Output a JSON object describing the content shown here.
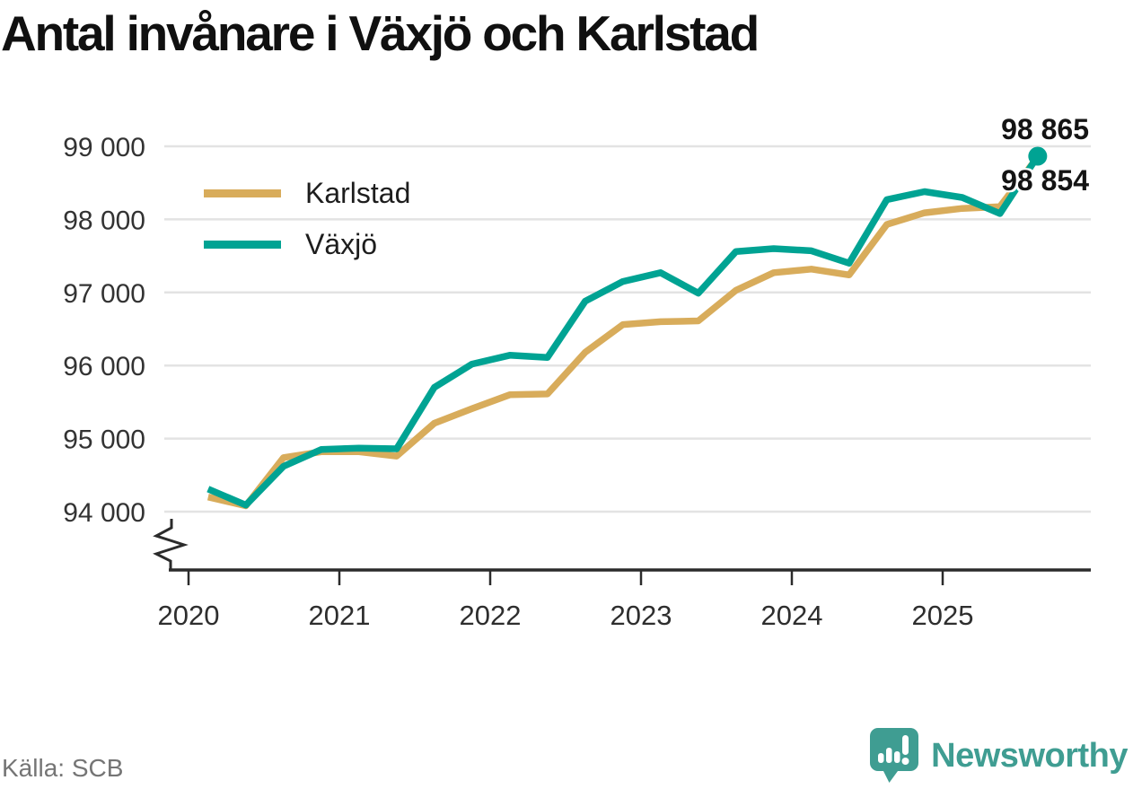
{
  "title": "Antal invånare i Växjö och Karlstad",
  "source": "Källa: SCB",
  "brand": {
    "name": "Newsworthy",
    "color": "#3f9d92",
    "icon": "newsworthy-bubble-barchart-icon"
  },
  "legend": [
    {
      "label": "Karlstad",
      "color": "#d8ac5b"
    },
    {
      "label": "Växjö",
      "color": "#00a393"
    }
  ],
  "end_labels": [
    {
      "text": "98 865",
      "value": 98865,
      "series": "Växjö"
    },
    {
      "text": "98 854",
      "value": 98854,
      "series": "Karlstad"
    }
  ],
  "colors": {
    "vaxjo_line": "#00a393",
    "karlstad_line": "#d8ac5b",
    "gridline": "#e3e3e3",
    "axis": "#2b2b2b",
    "tick_text": "#333333",
    "title_text": "#101010",
    "source_text": "#757575"
  },
  "chart_data": {
    "type": "line",
    "title": "Antal invånare i Växjö och Karlstad",
    "xlabel": "",
    "ylabel": "",
    "x_years": [
      2020.13,
      2020.38,
      2020.63,
      2020.88,
      2021.13,
      2021.38,
      2021.63,
      2021.88,
      2022.13,
      2022.38,
      2022.63,
      2022.88,
      2023.13,
      2023.38,
      2023.63,
      2023.88,
      2024.13,
      2024.38,
      2024.63,
      2024.88,
      2025.13,
      2025.38,
      2025.63
    ],
    "series": [
      {
        "name": "Karlstad",
        "color": "#d8ac5b",
        "end_dot": false,
        "values": [
          94200,
          94080,
          94740,
          94820,
          94820,
          94760,
          95210,
          95410,
          95600,
          95610,
          96180,
          96560,
          96600,
          96610,
          97030,
          97270,
          97320,
          97240,
          97930,
          98090,
          98150,
          98175,
          98854
        ]
      },
      {
        "name": "Växjö",
        "color": "#00a393",
        "end_dot": true,
        "values": [
          94310,
          94090,
          94620,
          94850,
          94870,
          94860,
          95700,
          96020,
          96140,
          96110,
          96880,
          97150,
          97270,
          96990,
          97560,
          97600,
          97570,
          97400,
          98270,
          98380,
          98300,
          98080,
          98865
        ]
      }
    ],
    "final_values": {
      "Växjö": 98865,
      "Karlstad": 98854
    },
    "x_tick_years": [
      2020,
      2021,
      2022,
      2023,
      2024,
      2025
    ],
    "x_tick_labels": [
      "2020",
      "2021",
      "2022",
      "2023",
      "2024",
      "2025"
    ],
    "y_ticks": [
      94000,
      95000,
      96000,
      97000,
      98000,
      99000
    ],
    "y_tick_labels": [
      "94 000",
      "95 000",
      "96 000",
      "97 000",
      "98 000",
      "99 000"
    ],
    "ylim": [
      94000,
      99000
    ],
    "axis_break": true,
    "grid": "horizontal",
    "legend_position": "upper-left-inside"
  }
}
